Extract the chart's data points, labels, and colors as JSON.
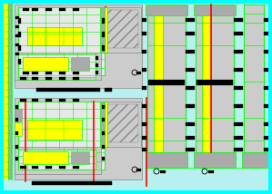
{
  "bg_color": "#b8f0f0",
  "border_color": "#00ffff",
  "line_green": "#00ff00",
  "line_yellow": "#ffff00",
  "line_black": "#000000",
  "line_red": "#ff0000",
  "line_gray": "#888888",
  "fill_yellow": "#ffff00",
  "fill_gray": "#aaaaaa",
  "fill_ltgray": "#cccccc",
  "fill_white": "#e8e8e8",
  "fill_bg": "#b8f0f0",
  "brown": "#8B4513",
  "figsize": [
    2.99,
    2.14
  ],
  "dpi": 100
}
